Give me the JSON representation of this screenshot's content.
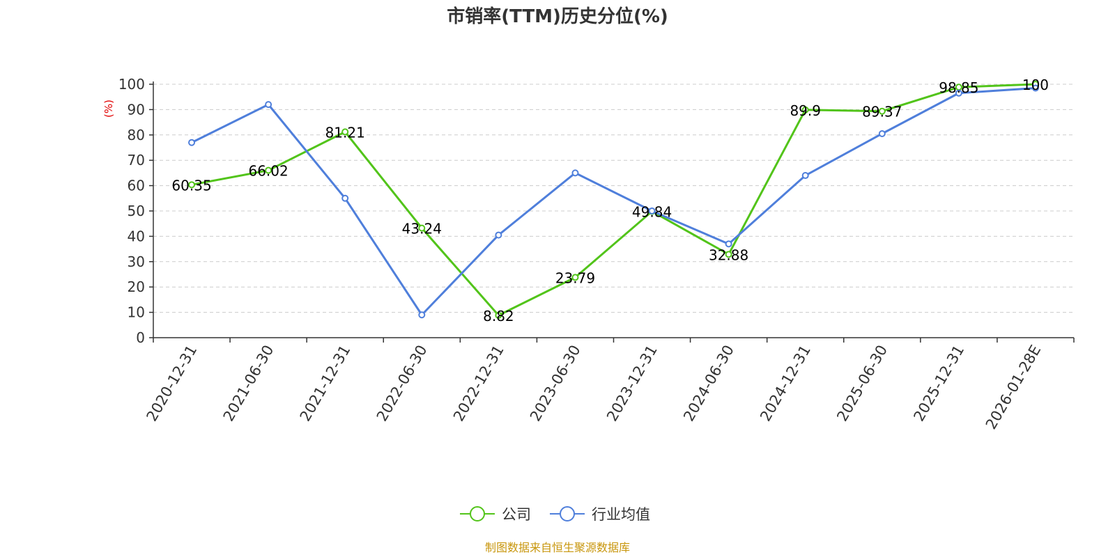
{
  "chart_data": {
    "type": "line",
    "title": "市销率(TTM)历史分位(%)",
    "ylabel": "(%)",
    "ylim": [
      0,
      100
    ],
    "yticks": [
      0,
      10,
      20,
      30,
      40,
      50,
      60,
      70,
      80,
      90,
      100
    ],
    "grid": true,
    "legend_position": "bottom-center",
    "categories": [
      "2020-12-31",
      "2021-06-30",
      "2021-12-31",
      "2022-06-30",
      "2022-12-31",
      "2023-06-30",
      "2023-12-31",
      "2024-06-30",
      "2024-12-31",
      "2025-06-30",
      "2025-12-31",
      "2026-01-28E"
    ],
    "series": [
      {
        "name": "公司",
        "color": "#52c41a",
        "values": [
          60.35,
          66.02,
          81.21,
          43.24,
          8.82,
          23.79,
          49.84,
          32.88,
          89.9,
          89.37,
          98.85,
          100
        ],
        "labels": [
          "60.35",
          "66.02",
          "81.21",
          "43.24",
          "8.82",
          "23.79",
          "49.84",
          "32.88",
          "89.9",
          "89.37",
          "98.85",
          "100"
        ]
      },
      {
        "name": "行业均值",
        "color": "#4f7fdb",
        "values": [
          77,
          92,
          55,
          9,
          40.5,
          65,
          50,
          37,
          64,
          80.5,
          96.5,
          98.5
        ]
      }
    ]
  },
  "source_note": "制图数据来自恒生聚源数据库"
}
